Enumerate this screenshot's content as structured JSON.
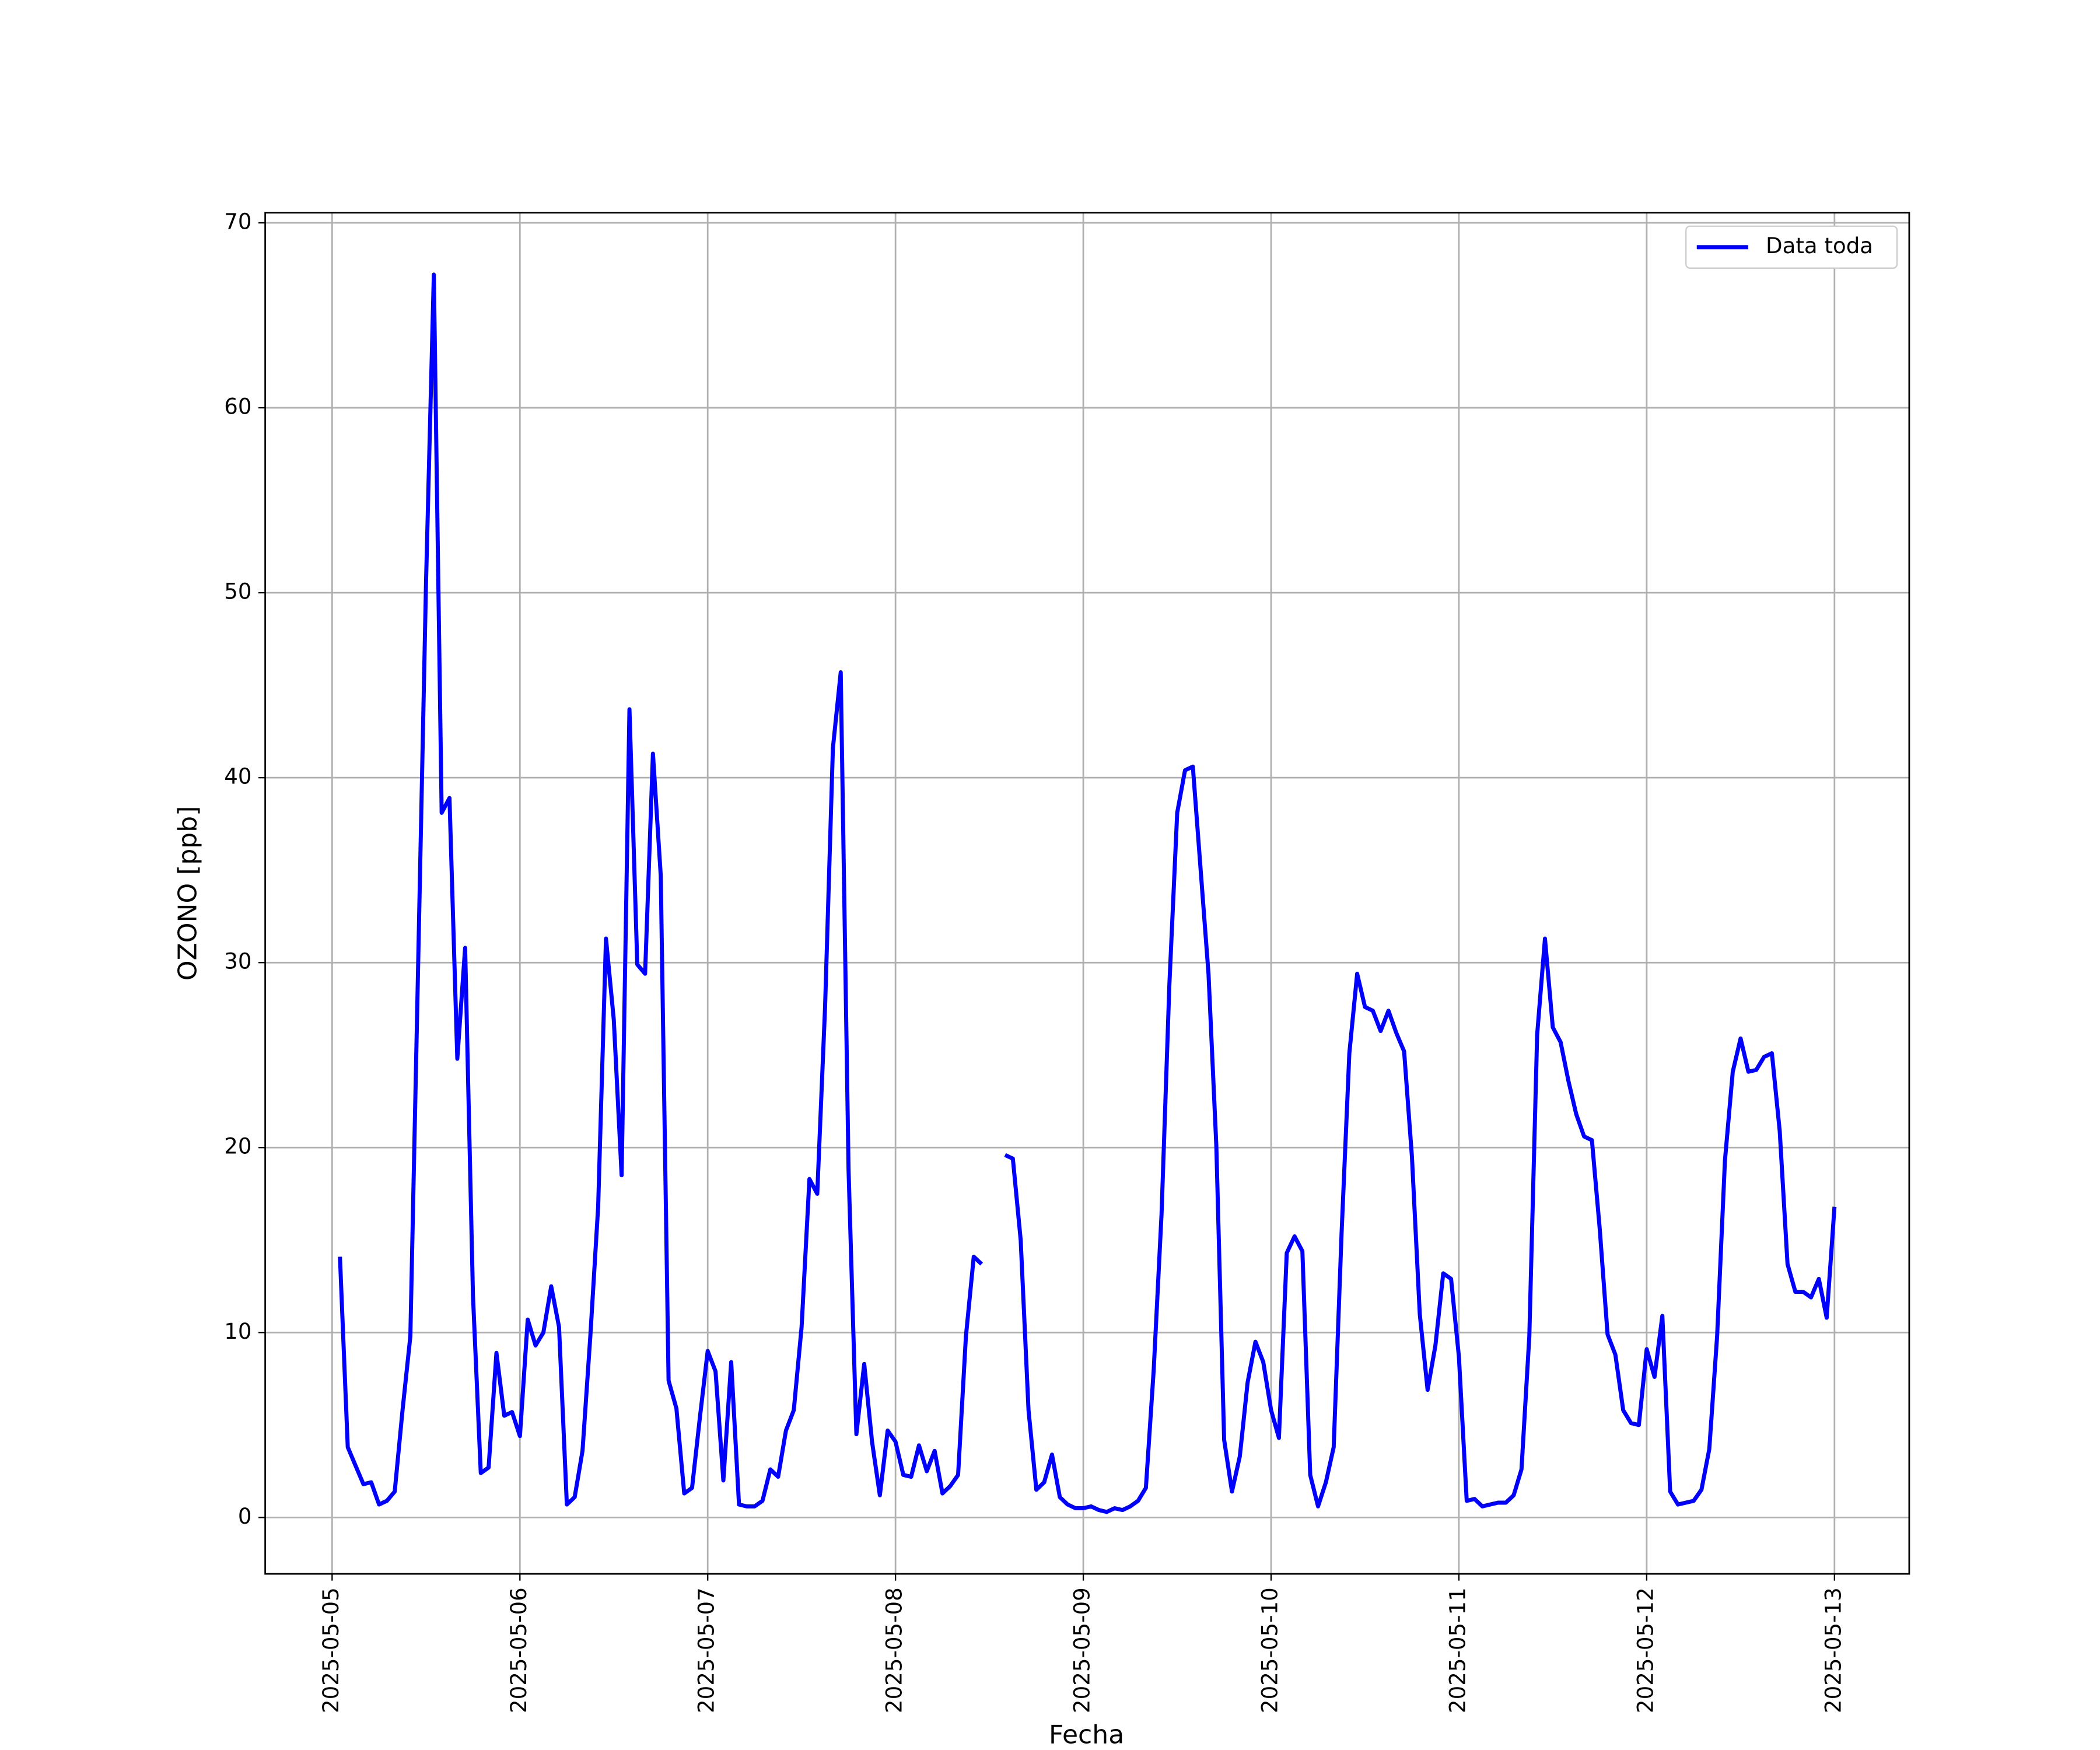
{
  "chart_data": {
    "type": "line",
    "xlabel": "Fecha",
    "ylabel": "OZONO [ppb]",
    "xlim": [
      "2025-05-04 15:27",
      "2025-05-13 09:33"
    ],
    "xticks": [
      "2025-05-05",
      "2025-05-06",
      "2025-05-07",
      "2025-05-08",
      "2025-05-09",
      "2025-05-10",
      "2025-05-11",
      "2025-05-12",
      "2025-05-13"
    ],
    "ylim": [
      -3.05,
      70.55
    ],
    "yticks": [
      0,
      10,
      20,
      30,
      40,
      50,
      60,
      70
    ],
    "grid": true,
    "legend": "upper right",
    "x": [
      "2025-05-05 01:00",
      "2025-05-05 02:00",
      "2025-05-05 03:00",
      "2025-05-05 04:00",
      "2025-05-05 05:00",
      "2025-05-05 06:00",
      "2025-05-05 07:00",
      "2025-05-05 08:00",
      "2025-05-05 09:00",
      "2025-05-05 10:00",
      "2025-05-05 11:00",
      "2025-05-05 12:00",
      "2025-05-05 13:00",
      "2025-05-05 14:00",
      "2025-05-05 15:00",
      "2025-05-05 16:00",
      "2025-05-05 17:00",
      "2025-05-05 18:00",
      "2025-05-05 19:00",
      "2025-05-05 20:00",
      "2025-05-05 21:00",
      "2025-05-05 22:00",
      "2025-05-05 23:00",
      "2025-05-06 00:00",
      "2025-05-06 01:00",
      "2025-05-06 02:00",
      "2025-05-06 03:00",
      "2025-05-06 04:00",
      "2025-05-06 05:00",
      "2025-05-06 06:00",
      "2025-05-06 07:00",
      "2025-05-06 08:00",
      "2025-05-06 09:00",
      "2025-05-06 10:00",
      "2025-05-06 11:00",
      "2025-05-06 12:00",
      "2025-05-06 13:00",
      "2025-05-06 14:00",
      "2025-05-06 15:00",
      "2025-05-06 16:00",
      "2025-05-06 17:00",
      "2025-05-06 18:00",
      "2025-05-06 19:00",
      "2025-05-06 20:00",
      "2025-05-06 21:00",
      "2025-05-06 22:00",
      "2025-05-06 23:00",
      "2025-05-07 00:00",
      "2025-05-07 01:00",
      "2025-05-07 02:00",
      "2025-05-07 03:00",
      "2025-05-07 04:00",
      "2025-05-07 05:00",
      "2025-05-07 06:00",
      "2025-05-07 07:00",
      "2025-05-07 08:00",
      "2025-05-07 09:00",
      "2025-05-07 10:00",
      "2025-05-07 11:00",
      "2025-05-07 12:00",
      "2025-05-07 13:00",
      "2025-05-07 14:00",
      "2025-05-07 15:00",
      "2025-05-07 16:00",
      "2025-05-07 17:00",
      "2025-05-07 18:00",
      "2025-05-07 19:00",
      "2025-05-07 20:00",
      "2025-05-07 21:00",
      "2025-05-07 22:00",
      "2025-05-07 23:00",
      "2025-05-08 00:00",
      "2025-05-08 01:00",
      "2025-05-08 02:00",
      "2025-05-08 03:00",
      "2025-05-08 04:00",
      "2025-05-08 05:00",
      "2025-05-08 06:00",
      "2025-05-08 07:00",
      "2025-05-08 08:00",
      "2025-05-08 09:00",
      "2025-05-08 10:00",
      "2025-05-08 11:00",
      "2025-05-08 12:00",
      "2025-05-08 13:00",
      "2025-05-08 14:00",
      "2025-05-08 15:00",
      "2025-05-08 16:00",
      "2025-05-08 17:00",
      "2025-05-08 18:00",
      "2025-05-08 19:00",
      "2025-05-08 20:00",
      "2025-05-08 21:00",
      "2025-05-08 22:00",
      "2025-05-08 23:00",
      "2025-05-09 00:00",
      "2025-05-09 01:00",
      "2025-05-09 02:00",
      "2025-05-09 03:00",
      "2025-05-09 04:00",
      "2025-05-09 05:00",
      "2025-05-09 06:00",
      "2025-05-09 07:00",
      "2025-05-09 08:00",
      "2025-05-09 09:00",
      "2025-05-09 10:00",
      "2025-05-09 11:00",
      "2025-05-09 12:00",
      "2025-05-09 13:00",
      "2025-05-09 14:00",
      "2025-05-09 15:00",
      "2025-05-09 16:00",
      "2025-05-09 17:00",
      "2025-05-09 18:00",
      "2025-05-09 19:00",
      "2025-05-09 20:00",
      "2025-05-09 21:00",
      "2025-05-09 22:00",
      "2025-05-09 23:00",
      "2025-05-10 00:00",
      "2025-05-10 01:00",
      "2025-05-10 02:00",
      "2025-05-10 03:00",
      "2025-05-10 04:00",
      "2025-05-10 05:00",
      "2025-05-10 06:00",
      "2025-05-10 07:00",
      "2025-05-10 08:00",
      "2025-05-10 09:00",
      "2025-05-10 10:00",
      "2025-05-10 11:00",
      "2025-05-10 12:00",
      "2025-05-10 13:00",
      "2025-05-10 14:00",
      "2025-05-10 15:00",
      "2025-05-10 16:00",
      "2025-05-10 17:00",
      "2025-05-10 18:00",
      "2025-05-10 19:00",
      "2025-05-10 20:00",
      "2025-05-10 21:00",
      "2025-05-10 22:00",
      "2025-05-10 23:00",
      "2025-05-11 00:00",
      "2025-05-11 01:00",
      "2025-05-11 02:00",
      "2025-05-11 03:00",
      "2025-05-11 04:00",
      "2025-05-11 05:00",
      "2025-05-11 06:00",
      "2025-05-11 07:00",
      "2025-05-11 08:00",
      "2025-05-11 09:00",
      "2025-05-11 10:00",
      "2025-05-11 11:00",
      "2025-05-11 12:00",
      "2025-05-11 13:00",
      "2025-05-11 14:00",
      "2025-05-11 15:00",
      "2025-05-11 16:00",
      "2025-05-11 17:00",
      "2025-05-11 18:00",
      "2025-05-11 19:00",
      "2025-05-11 20:00",
      "2025-05-11 21:00",
      "2025-05-11 22:00",
      "2025-05-11 23:00",
      "2025-05-12 00:00",
      "2025-05-12 01:00",
      "2025-05-12 02:00",
      "2025-05-12 03:00",
      "2025-05-12 04:00",
      "2025-05-12 05:00",
      "2025-05-12 06:00",
      "2025-05-12 07:00",
      "2025-05-12 08:00",
      "2025-05-12 09:00",
      "2025-05-12 10:00",
      "2025-05-12 11:00",
      "2025-05-12 12:00",
      "2025-05-12 13:00",
      "2025-05-12 14:00",
      "2025-05-12 15:00",
      "2025-05-12 16:00",
      "2025-05-12 17:00",
      "2025-05-12 18:00",
      "2025-05-12 19:00",
      "2025-05-12 20:00",
      "2025-05-12 21:00",
      "2025-05-12 22:00",
      "2025-05-12 23:00",
      "2025-05-13 00:00"
    ],
    "series": [
      {
        "name": "Data toda",
        "color": "#0000ff",
        "values": [
          14.1,
          3.8,
          2.8,
          1.8,
          1.9,
          0.7,
          0.9,
          1.4,
          5.8,
          9.8,
          30,
          50.5,
          67.2,
          38.1,
          38.9,
          24.8,
          30.8,
          12.0,
          2.4,
          2.7,
          8.9,
          5.5,
          5.7,
          4.4,
          10.7,
          9.3,
          10.0,
          12.5,
          10.3,
          0.7,
          1.1,
          3.6,
          9.8,
          16.8,
          31.3,
          26.9,
          18.5,
          43.7,
          29.9,
          29.4,
          41.3,
          34.7,
          7.4,
          5.9,
          1.3,
          1.6,
          5.4,
          9.0,
          7.9,
          2.0,
          8.4,
          0.7,
          0.6,
          0.6,
          0.9,
          2.6,
          2.2,
          4.7,
          5.8,
          10.3,
          18.3,
          17.5,
          27.6,
          41.6,
          45.7,
          18.8,
          4.5,
          8.3,
          4.1,
          1.2,
          4.7,
          4.1,
          2.3,
          2.2,
          3.9,
          2.5,
          3.6,
          1.3,
          1.7,
          2.3,
          9.8,
          14.1,
          13.7,
          null,
          null,
          19.6,
          19.4,
          15.0,
          5.8,
          1.5,
          1.9,
          3.4,
          1.1,
          0.7,
          0.5,
          0.5,
          0.6,
          0.4,
          0.3,
          0.5,
          0.4,
          0.6,
          0.9,
          1.6,
          8.0,
          16.4,
          28.8,
          38.1,
          40.4,
          40.6,
          35.0,
          29.4,
          20.1,
          4.2,
          1.4,
          3.3,
          7.3,
          9.5,
          8.4,
          5.8,
          4.3,
          14.3,
          15.2,
          14.4,
          2.3,
          0.6,
          1.9,
          3.8,
          15.3,
          25.1,
          29.4,
          27.6,
          27.4,
          26.3,
          27.4,
          26.2,
          25.2,
          19.5,
          11.0,
          6.9,
          9.3,
          13.2,
          12.9,
          8.7,
          0.9,
          1.0,
          0.6,
          0.7,
          0.8,
          0.8,
          1.2,
          2.6,
          9.8,
          26.1,
          31.3,
          26.5,
          25.7,
          23.6,
          21.8,
          20.6,
          20.4,
          15.6,
          9.9,
          8.8,
          5.8,
          5.1,
          5.0,
          9.1,
          7.6,
          10.9,
          1.4,
          0.7,
          0.8,
          0.9,
          1.5,
          3.7,
          9.8,
          19.3,
          24.1,
          25.9,
          24.1,
          24.2,
          24.9,
          25.1,
          20.9,
          13.7,
          12.2,
          12.2,
          11.9,
          12.9,
          10.8,
          16.8
        ]
      }
    ]
  }
}
